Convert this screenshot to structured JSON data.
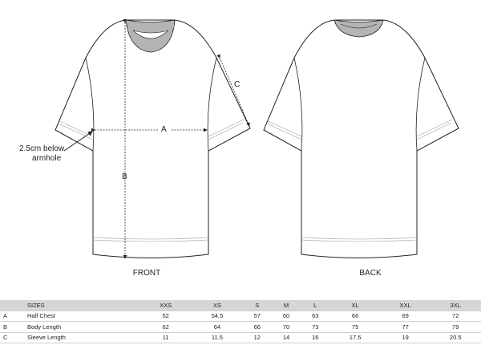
{
  "annotations": {
    "a": "A",
    "b": "B",
    "c": "C",
    "armhole_note_line1": "2.5cm below",
    "armhole_note_line2": "armhole"
  },
  "views": {
    "front": "FRONT",
    "back": "BACK"
  },
  "table": {
    "header_label": "SIZES",
    "sizes": [
      "XXS",
      "XS",
      "S",
      "M",
      "L",
      "XL",
      "XXL",
      "3XL"
    ],
    "rows": [
      {
        "code": "A",
        "name": "Half Chest",
        "values": [
          "52",
          "54.5",
          "57",
          "60",
          "63",
          "66",
          "69",
          "72"
        ]
      },
      {
        "code": "B",
        "name": "Body Length",
        "values": [
          "62",
          "64",
          "66",
          "70",
          "73",
          "75",
          "77",
          "79"
        ]
      },
      {
        "code": "C",
        "name": "Sleeve Length",
        "values": [
          "11",
          "11.5",
          "12",
          "14",
          "16",
          "17.5",
          "19",
          "20.5"
        ]
      }
    ]
  }
}
